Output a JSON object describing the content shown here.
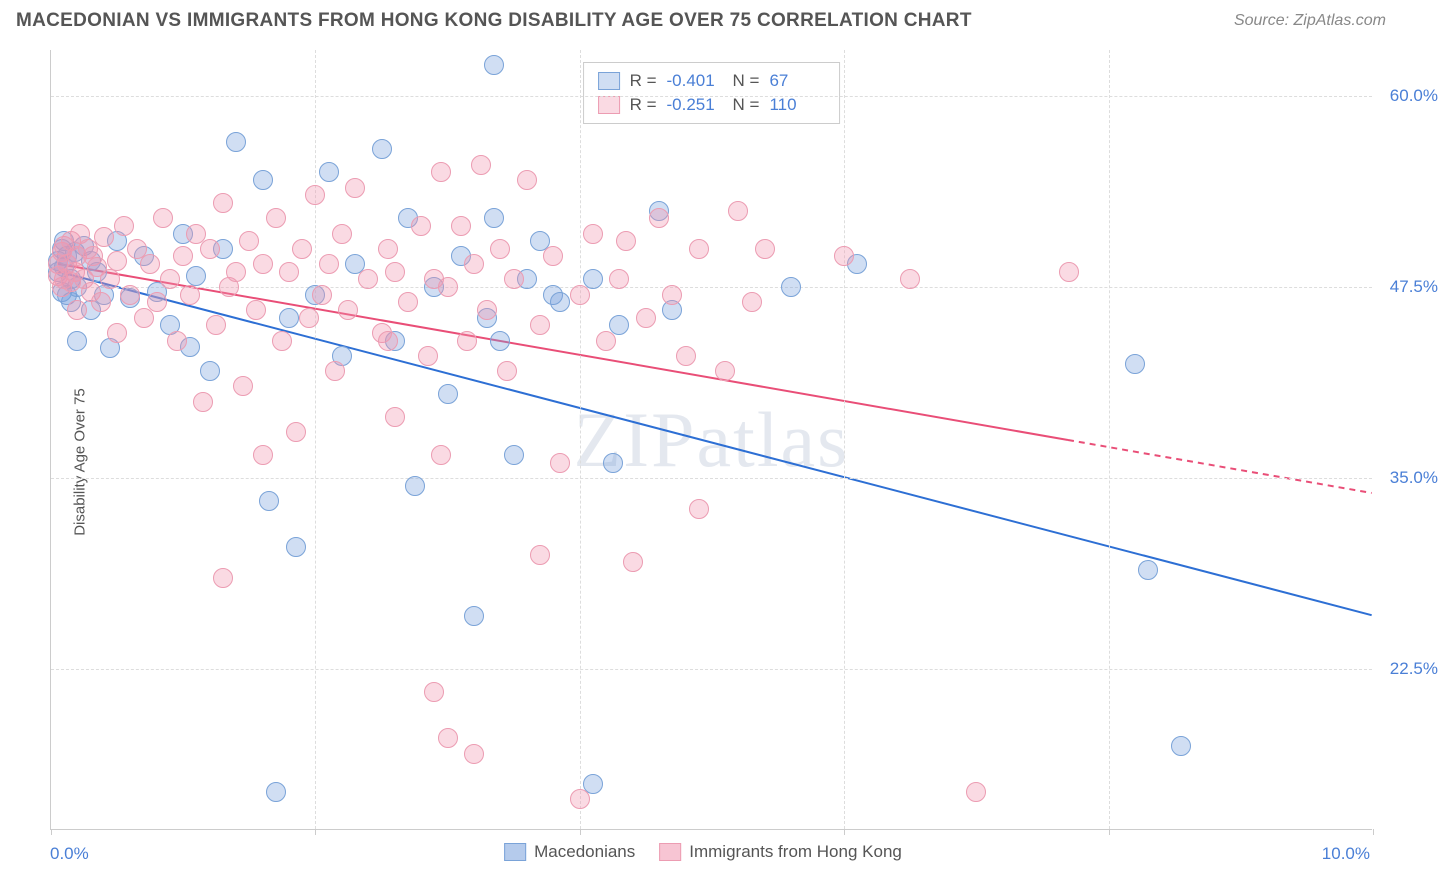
{
  "header": {
    "title": "MACEDONIAN VS IMMIGRANTS FROM HONG KONG DISABILITY AGE OVER 75 CORRELATION CHART",
    "source": "Source: ZipAtlas.com"
  },
  "chart": {
    "type": "scatter",
    "ylabel": "Disability Age Over 75",
    "xlim": [
      0,
      10
    ],
    "ylim": [
      12,
      63
    ],
    "x_ticks_major": [
      0,
      2,
      4,
      6,
      8,
      10
    ],
    "x_tick_labels": {
      "left": "0.0%",
      "right": "10.0%"
    },
    "y_ticks": [
      {
        "value": 60.0,
        "label": "60.0%"
      },
      {
        "value": 47.5,
        "label": "47.5%"
      },
      {
        "value": 35.0,
        "label": "35.0%"
      },
      {
        "value": 22.5,
        "label": "22.5%"
      }
    ],
    "background_color": "#ffffff",
    "grid_color": "#dddddd",
    "marker_radius": 10,
    "series": [
      {
        "name": "Macedonians",
        "fill_color": "rgba(120,160,220,0.35)",
        "stroke_color": "#7aa3d8",
        "line_color": "#2d6fd4",
        "R": "-0.401",
        "N": "67",
        "trend": {
          "x1": 0.05,
          "y1": 48.5,
          "x2": 10.0,
          "y2": 26.0,
          "solid_until_x": 10.0
        },
        "points": [
          [
            0.05,
            48.5
          ],
          [
            0.05,
            49.2
          ],
          [
            0.08,
            50.0
          ],
          [
            0.08,
            47.2
          ],
          [
            0.1,
            48.8
          ],
          [
            0.1,
            50.5
          ],
          [
            0.12,
            47.0
          ],
          [
            0.12,
            49.5
          ],
          [
            0.15,
            48.0
          ],
          [
            0.15,
            46.5
          ],
          [
            0.18,
            49.8
          ],
          [
            0.2,
            47.5
          ],
          [
            0.2,
            44.0
          ],
          [
            0.25,
            50.2
          ],
          [
            0.3,
            46.0
          ],
          [
            0.3,
            49.2
          ],
          [
            0.35,
            48.5
          ],
          [
            0.4,
            47.0
          ],
          [
            0.45,
            43.5
          ],
          [
            0.5,
            50.5
          ],
          [
            0.6,
            46.8
          ],
          [
            0.7,
            49.5
          ],
          [
            0.8,
            47.2
          ],
          [
            0.9,
            45.0
          ],
          [
            1.0,
            51.0
          ],
          [
            1.05,
            43.6
          ],
          [
            1.1,
            48.2
          ],
          [
            1.2,
            42.0
          ],
          [
            1.3,
            50.0
          ],
          [
            1.4,
            57.0
          ],
          [
            1.6,
            54.5
          ],
          [
            1.65,
            33.5
          ],
          [
            1.7,
            14.5
          ],
          [
            1.8,
            45.5
          ],
          [
            1.85,
            30.5
          ],
          [
            2.0,
            47.0
          ],
          [
            2.1,
            55.0
          ],
          [
            2.2,
            43.0
          ],
          [
            2.3,
            49.0
          ],
          [
            2.5,
            56.5
          ],
          [
            2.6,
            44.0
          ],
          [
            2.7,
            52.0
          ],
          [
            2.75,
            34.5
          ],
          [
            2.9,
            47.5
          ],
          [
            3.0,
            40.5
          ],
          [
            3.1,
            49.5
          ],
          [
            3.2,
            26.0
          ],
          [
            3.3,
            45.5
          ],
          [
            3.35,
            52.0
          ],
          [
            3.35,
            62.0
          ],
          [
            3.4,
            44.0
          ],
          [
            3.5,
            36.5
          ],
          [
            3.6,
            48.0
          ],
          [
            3.7,
            50.5
          ],
          [
            3.8,
            47.0
          ],
          [
            3.85,
            46.5
          ],
          [
            4.1,
            15.0
          ],
          [
            4.1,
            48.0
          ],
          [
            4.25,
            36.0
          ],
          [
            4.3,
            45.0
          ],
          [
            4.6,
            52.5
          ],
          [
            4.7,
            46.0
          ],
          [
            5.6,
            47.5
          ],
          [
            6.1,
            49.0
          ],
          [
            8.2,
            42.5
          ],
          [
            8.55,
            17.5
          ],
          [
            8.3,
            29.0
          ]
        ]
      },
      {
        "name": "Immigrants from Hong Kong",
        "fill_color": "rgba(240,150,175,0.35)",
        "stroke_color": "#ec9cb2",
        "line_color": "#e94e77",
        "R": "-0.251",
        "N": "110",
        "trend": {
          "x1": 0.05,
          "y1": 49.0,
          "x2": 10.0,
          "y2": 34.0,
          "solid_until_x": 7.7
        },
        "points": [
          [
            0.05,
            49.0
          ],
          [
            0.05,
            48.2
          ],
          [
            0.08,
            49.8
          ],
          [
            0.08,
            47.5
          ],
          [
            0.1,
            50.2
          ],
          [
            0.1,
            48.0
          ],
          [
            0.12,
            49.0
          ],
          [
            0.15,
            47.8
          ],
          [
            0.15,
            50.5
          ],
          [
            0.18,
            48.5
          ],
          [
            0.2,
            49.5
          ],
          [
            0.2,
            46.0
          ],
          [
            0.22,
            51.0
          ],
          [
            0.25,
            48.0
          ],
          [
            0.28,
            50.0
          ],
          [
            0.3,
            47.2
          ],
          [
            0.32,
            49.5
          ],
          [
            0.35,
            48.8
          ],
          [
            0.38,
            46.5
          ],
          [
            0.4,
            50.8
          ],
          [
            0.45,
            48.0
          ],
          [
            0.5,
            49.2
          ],
          [
            0.5,
            44.5
          ],
          [
            0.55,
            51.5
          ],
          [
            0.6,
            47.0
          ],
          [
            0.65,
            50.0
          ],
          [
            0.7,
            45.5
          ],
          [
            0.75,
            49.0
          ],
          [
            0.8,
            46.5
          ],
          [
            0.85,
            52.0
          ],
          [
            0.9,
            48.0
          ],
          [
            0.95,
            44.0
          ],
          [
            1.0,
            49.5
          ],
          [
            1.05,
            47.0
          ],
          [
            1.1,
            51.0
          ],
          [
            1.15,
            40.0
          ],
          [
            1.2,
            50.0
          ],
          [
            1.25,
            45.0
          ],
          [
            1.3,
            53.0
          ],
          [
            1.35,
            47.5
          ],
          [
            1.3,
            28.5
          ],
          [
            1.4,
            48.5
          ],
          [
            1.45,
            41.0
          ],
          [
            1.5,
            50.5
          ],
          [
            1.55,
            46.0
          ],
          [
            1.6,
            49.0
          ],
          [
            1.6,
            36.5
          ],
          [
            1.7,
            52.0
          ],
          [
            1.75,
            44.0
          ],
          [
            1.8,
            48.5
          ],
          [
            1.85,
            38.0
          ],
          [
            1.9,
            50.0
          ],
          [
            1.95,
            45.5
          ],
          [
            2.0,
            53.5
          ],
          [
            2.05,
            47.0
          ],
          [
            2.1,
            49.0
          ],
          [
            2.15,
            42.0
          ],
          [
            2.2,
            51.0
          ],
          [
            2.25,
            46.0
          ],
          [
            2.3,
            54.0
          ],
          [
            2.4,
            48.0
          ],
          [
            2.5,
            44.5
          ],
          [
            2.55,
            50.0
          ],
          [
            2.55,
            44.0
          ],
          [
            2.6,
            48.5
          ],
          [
            2.6,
            39.0
          ],
          [
            2.7,
            46.5
          ],
          [
            2.8,
            51.5
          ],
          [
            2.85,
            43.0
          ],
          [
            2.9,
            48.0
          ],
          [
            2.9,
            21.0
          ],
          [
            2.95,
            36.5
          ],
          [
            2.95,
            55.0
          ],
          [
            3.0,
            18.0
          ],
          [
            3.0,
            47.5
          ],
          [
            3.1,
            51.5
          ],
          [
            3.15,
            44.0
          ],
          [
            3.2,
            49.0
          ],
          [
            3.2,
            17.0
          ],
          [
            3.25,
            55.5
          ],
          [
            3.3,
            46.0
          ],
          [
            3.4,
            50.0
          ],
          [
            3.45,
            42.0
          ],
          [
            3.5,
            48.0
          ],
          [
            3.6,
            54.5
          ],
          [
            3.7,
            45.0
          ],
          [
            3.7,
            30.0
          ],
          [
            3.8,
            49.5
          ],
          [
            3.85,
            36.0
          ],
          [
            4.0,
            47.0
          ],
          [
            4.0,
            14.0
          ],
          [
            4.1,
            51.0
          ],
          [
            4.2,
            44.0
          ],
          [
            4.3,
            48.0
          ],
          [
            4.4,
            29.5
          ],
          [
            4.35,
            50.5
          ],
          [
            4.5,
            45.5
          ],
          [
            4.6,
            52.0
          ],
          [
            4.7,
            47.0
          ],
          [
            4.8,
            43.0
          ],
          [
            4.9,
            50.0
          ],
          [
            4.9,
            33.0
          ],
          [
            5.1,
            42.0
          ],
          [
            5.2,
            52.5
          ],
          [
            5.3,
            46.5
          ],
          [
            5.4,
            50.0
          ],
          [
            6.0,
            49.5
          ],
          [
            6.5,
            48.0
          ],
          [
            7.0,
            14.5
          ],
          [
            7.7,
            48.5
          ]
        ]
      }
    ],
    "watermark": "ZIPatlas"
  },
  "legend_bottom": {
    "items": [
      {
        "label": "Macedonians",
        "fill": "rgba(120,160,220,0.55)",
        "border": "#7aa3d8"
      },
      {
        "label": "Immigrants from Hong Kong",
        "fill": "rgba(240,150,175,0.55)",
        "border": "#ec9cb2"
      }
    ]
  }
}
